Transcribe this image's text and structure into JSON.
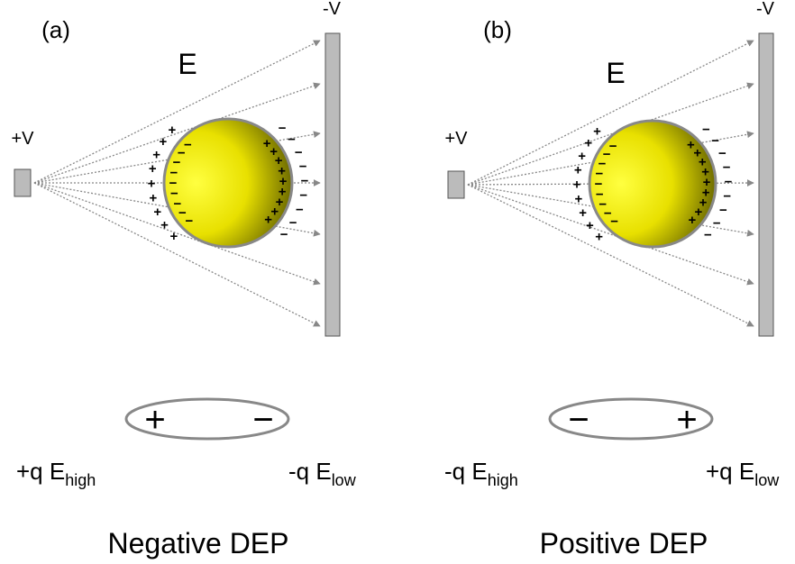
{
  "charges": {
    "plus": "+",
    "minus": "−"
  },
  "panels": [
    {
      "label": "(a)",
      "field": "E",
      "source": "+V",
      "sink": "-V",
      "dipole": {
        "left": "+",
        "right": "−"
      },
      "forces": [
        {
          "charge": "+q E",
          "sub": "high"
        },
        {
          "charge": "-q E",
          "sub": "low"
        }
      ],
      "caption": "Negative DEP"
    },
    {
      "label": "(b)",
      "field": "E",
      "source": "+V",
      "sink": "-V",
      "dipole": {
        "left": "−",
        "right": "+"
      },
      "forces": [
        {
          "charge": "-q E",
          "sub": "high"
        },
        {
          "charge": "+q E",
          "sub": "low"
        }
      ],
      "caption": "Positive DEP"
    }
  ]
}
